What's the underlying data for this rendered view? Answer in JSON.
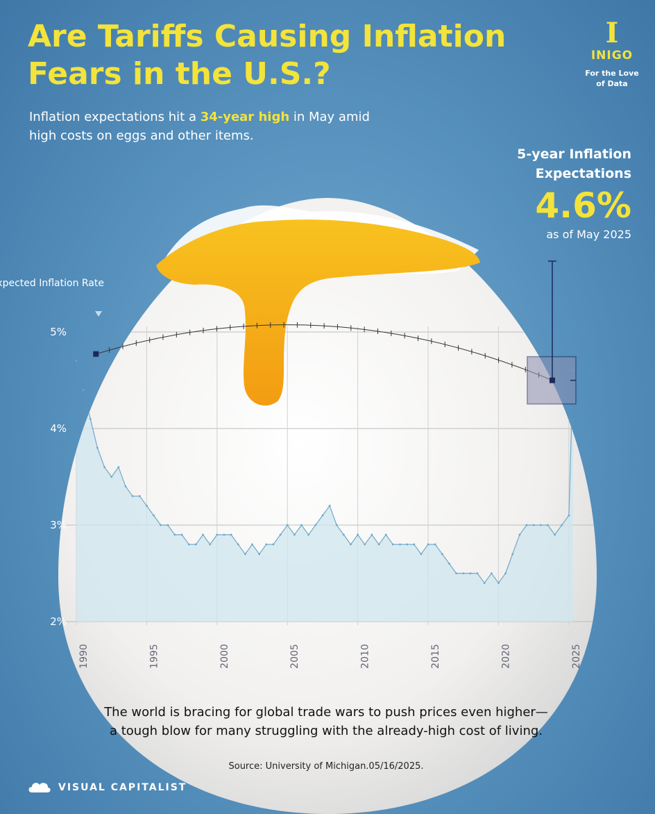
{
  "header": {
    "title": "Are Tariffs Causing Inflation Fears in the U.S.?",
    "subtitle_pre": "Inflation expectations hit a ",
    "subtitle_highlight": "34-year high",
    "subtitle_post": " in May amid high costs on eggs and other items."
  },
  "brand": {
    "mark": "I",
    "name": "INIGO",
    "tagline": "For the Love of Data"
  },
  "callout": {
    "label": "5-year Inflation Expectations",
    "value": "4.6%",
    "as_of": "as of May 2025"
  },
  "chart_data": {
    "type": "line",
    "title": "5-year Inflation Expectations",
    "ylabel": "Expected Inflation Rate",
    "xlabel": "",
    "ylim": [
      2,
      5
    ],
    "xlim": [
      1990,
      2025.5
    ],
    "y_ticks": [
      "2%",
      "3%",
      "4%",
      "5%"
    ],
    "x_ticks": [
      "1990",
      "1995",
      "2000",
      "2005",
      "2010",
      "2015",
      "2020",
      "2025"
    ],
    "grid": true,
    "series": [
      {
        "name": "5-year expected inflation",
        "x": [
          1990.0,
          1990.5,
          1991.0,
          1991.5,
          1992.0,
          1992.5,
          1993.0,
          1993.5,
          1994.0,
          1994.5,
          1995.0,
          1995.5,
          1996.0,
          1996.5,
          1997.0,
          1997.5,
          1998.0,
          1998.5,
          1999.0,
          1999.5,
          2000.0,
          2000.5,
          2001.0,
          2001.5,
          2002.0,
          2002.5,
          2003.0,
          2003.5,
          2004.0,
          2004.5,
          2005.0,
          2005.5,
          2006.0,
          2006.5,
          2007.0,
          2007.5,
          2008.0,
          2008.5,
          2009.0,
          2009.5,
          2010.0,
          2010.5,
          2011.0,
          2011.5,
          2012.0,
          2012.5,
          2013.0,
          2013.5,
          2014.0,
          2014.5,
          2015.0,
          2015.5,
          2016.0,
          2016.5,
          2017.0,
          2017.5,
          2018.0,
          2018.5,
          2019.0,
          2019.5,
          2020.0,
          2020.5,
          2021.0,
          2021.5,
          2022.0,
          2022.5,
          2023.0,
          2023.5,
          2024.0,
          2024.5,
          2025.0,
          2025.3
        ],
        "values": [
          4.7,
          4.4,
          4.1,
          3.8,
          3.6,
          3.5,
          3.6,
          3.4,
          3.3,
          3.3,
          3.2,
          3.1,
          3.0,
          3.0,
          2.9,
          2.9,
          2.8,
          2.8,
          2.9,
          2.8,
          2.9,
          2.9,
          2.9,
          2.8,
          2.7,
          2.8,
          2.7,
          2.8,
          2.8,
          2.9,
          3.0,
          2.9,
          3.0,
          2.9,
          3.0,
          3.1,
          3.2,
          3.0,
          2.9,
          2.8,
          2.9,
          2.8,
          2.9,
          2.8,
          2.9,
          2.8,
          2.8,
          2.8,
          2.8,
          2.7,
          2.8,
          2.8,
          2.7,
          2.6,
          2.5,
          2.5,
          2.5,
          2.5,
          2.4,
          2.5,
          2.4,
          2.5,
          2.7,
          2.9,
          3.0,
          3.0,
          3.0,
          3.0,
          2.9,
          3.0,
          3.1,
          4.6
        ]
      }
    ],
    "annotations": [
      {
        "text": "34-year high",
        "x": 1991,
        "y": 4.7
      },
      {
        "text": "4.6%",
        "x": 2025.3,
        "y": 4.6
      }
    ]
  },
  "footer": {
    "text": "The world is bracing for global trade wars to push prices even higher—a tough blow for many struggling with the already-high cost of living.",
    "source": "Source: University of Michigan.05/16/2025.",
    "publisher": "VISUAL CAPITALIST"
  },
  "colors": {
    "accent": "#f3e33a",
    "line": "#6fa8c7",
    "yolk": "#f5b21b",
    "marker": "#1a2a5a"
  }
}
